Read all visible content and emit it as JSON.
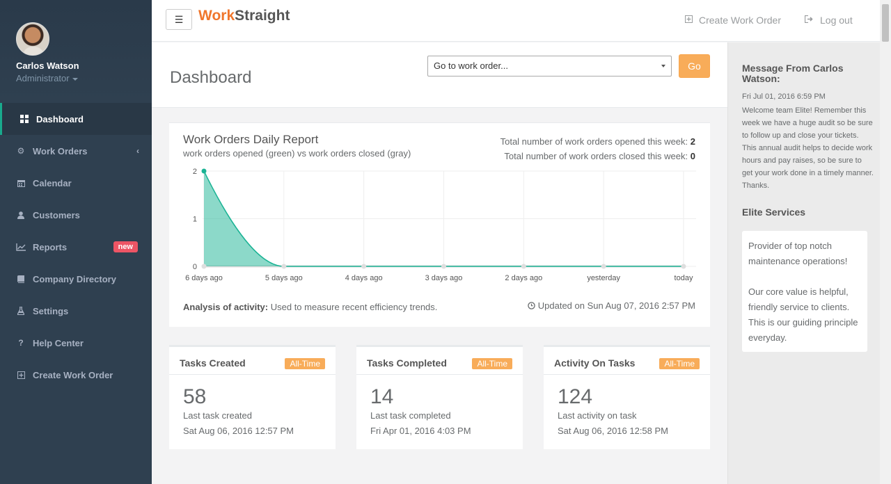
{
  "user": {
    "name": "Carlos Watson",
    "role": "Administrator"
  },
  "sidebar": {
    "items": [
      {
        "label": "Dashboard",
        "icon": "grid-icon"
      },
      {
        "label": "Work Orders",
        "icon": "cogs-icon"
      },
      {
        "label": "Calendar",
        "icon": "calendar-icon"
      },
      {
        "label": "Customers",
        "icon": "user-icon"
      },
      {
        "label": "Reports",
        "icon": "line-chart-icon",
        "badge": "new"
      },
      {
        "label": "Company Directory",
        "icon": "book-icon"
      },
      {
        "label": "Settings",
        "icon": "flask-icon"
      },
      {
        "label": "Help Center",
        "icon": "question-icon"
      },
      {
        "label": "Create Work Order",
        "icon": "plus-square-icon"
      }
    ]
  },
  "topbar": {
    "brand_part1": "Work",
    "brand_part2": "Straight",
    "create_label": "Create Work Order",
    "logout_label": "Log out"
  },
  "heading": {
    "title": "Dashboard",
    "select_value": "Go to work order...",
    "go_label": "Go"
  },
  "report": {
    "title": "Work Orders Daily Report",
    "subtitle": "work orders opened (green) vs work orders closed (gray)",
    "opened_label": "Total number of work orders opened this week:",
    "opened_value": "2",
    "closed_label": "Total number of work orders closed this week:",
    "closed_value": "0",
    "analysis_label": "Analysis of activity:",
    "analysis_text": "Used to measure recent efficiency trends.",
    "updated": "Updated on Sun Aug 07, 2016 2:57 PM"
  },
  "chart_data": {
    "type": "area",
    "categories": [
      "6 days ago",
      "5 days ago",
      "4 days ago",
      "3 days ago",
      "2 days ago",
      "yesterday",
      "today"
    ],
    "series": [
      {
        "name": "opened",
        "values": [
          2,
          0,
          0,
          0,
          0,
          0,
          0
        ],
        "color": "#1ab394"
      },
      {
        "name": "closed",
        "values": [
          0,
          0,
          0,
          0,
          0,
          0,
          0
        ],
        "color": "#dedede"
      }
    ],
    "yticks": [
      "0",
      "1",
      "2"
    ],
    "ylim": [
      0,
      2
    ],
    "grid": true
  },
  "tasks": [
    {
      "title": "Tasks Created",
      "badge": "All-Time",
      "number": "58",
      "desc": "Last task created",
      "date": "Sat Aug 06, 2016 12:57 PM"
    },
    {
      "title": "Tasks Completed",
      "badge": "All-Time",
      "number": "14",
      "desc": "Last task completed",
      "date": "Fri Apr 01, 2016 4:03 PM"
    },
    {
      "title": "Activity On Tasks",
      "badge": "All-Time",
      "number": "124",
      "desc": "Last activity on task",
      "date": "Sat Aug 06, 2016 12:58 PM"
    }
  ],
  "message": {
    "title": "Message From Carlos Watson:",
    "date": "Fri Jul 01, 2016 6:59 PM",
    "body": "Welcome team Elite! Remember this week we have a huge audit so be sure to follow up and close your tickets. This annual audit helps to decide work hours and pay raises, so be sure to get your work done in a timely manner. Thanks."
  },
  "elite": {
    "title": "Elite Services",
    "p1": "Provider of top notch maintenance operations!",
    "p2": "Our core value is helpful, friendly service to clients. This is our guiding principle everyday."
  }
}
